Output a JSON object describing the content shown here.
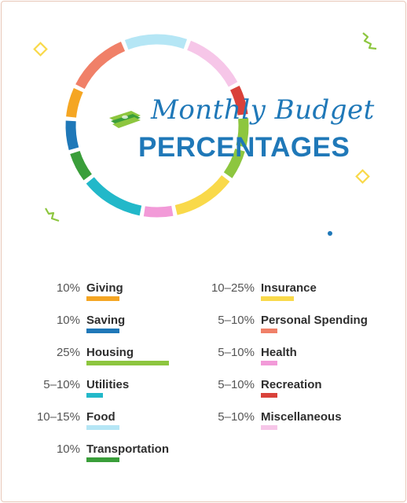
{
  "title": {
    "script": "Monthly Budget",
    "main": "PERCENTAGES"
  },
  "colors": {
    "title": "#1f78b8",
    "giving": "#f5a623",
    "saving": "#1f78b8",
    "housing": "#8dc63f",
    "utilities": "#22b8c9",
    "food": "#b5e6f5",
    "transportation": "#3a9e3a",
    "insurance": "#f9d94a",
    "personal_spending": "#f08068",
    "health": "#f29ad8",
    "recreation": "#d9413a",
    "miscellaneous": "#f6c6e8"
  },
  "chart_data": {
    "type": "table",
    "columns": [
      [
        {
          "percent": "10%",
          "category": "Giving",
          "color": "#f5a623",
          "bar_share": 10
        },
        {
          "percent": "10%",
          "category": "Saving",
          "color": "#1f78b8",
          "bar_share": 10
        },
        {
          "percent": "25%",
          "category": "Housing",
          "color": "#8dc63f",
          "bar_share": 25
        },
        {
          "percent": "5–10%",
          "category": "Utilities",
          "color": "#22b8c9",
          "bar_share": 5
        },
        {
          "percent": "10–15%",
          "category": "Food",
          "color": "#b5e6f5",
          "bar_share": 10
        },
        {
          "percent": "10%",
          "category": "Transportation",
          "color": "#3a9e3a",
          "bar_share": 10
        }
      ],
      [
        {
          "percent": "10–25%",
          "category": "Insurance",
          "color": "#f9d94a",
          "bar_share": 10
        },
        {
          "percent": "5–10%",
          "category": "Personal Spending",
          "color": "#f08068",
          "bar_share": 5
        },
        {
          "percent": "5–10%",
          "category": "Health",
          "color": "#f29ad8",
          "bar_share": 5
        },
        {
          "percent": "5–10%",
          "category": "Recreation",
          "color": "#d9413a",
          "bar_share": 5
        },
        {
          "percent": "5–10%",
          "category": "Miscellaneous",
          "color": "#f6c6e8",
          "bar_share": 5
        }
      ]
    ],
    "ring_segments": [
      {
        "category": "Food",
        "color": "#b5e6f5",
        "share": 10
      },
      {
        "category": "Miscellaneous",
        "color": "#f6c6e8",
        "share": 10
      },
      {
        "category": "Recreation",
        "color": "#d9413a",
        "share": 5
      },
      {
        "category": "Housing",
        "color": "#8dc63f",
        "share": 5
      },
      {
        "category": "Housing",
        "color": "#8dc63f",
        "share": 5
      },
      {
        "category": "Insurance",
        "color": "#f9d94a",
        "share": 10
      },
      {
        "category": "Health",
        "color": "#f29ad8",
        "share": 5
      },
      {
        "category": "Utilities",
        "color": "#22b8c9",
        "share": 10
      },
      {
        "category": "Transportation",
        "color": "#3a9e3a",
        "share": 5
      },
      {
        "category": "Saving",
        "color": "#1f78b8",
        "share": 5
      },
      {
        "category": "Giving",
        "color": "#f5a623",
        "share": 5
      },
      {
        "category": "Personal Spending",
        "color": "#f08068",
        "share": 10
      }
    ]
  }
}
